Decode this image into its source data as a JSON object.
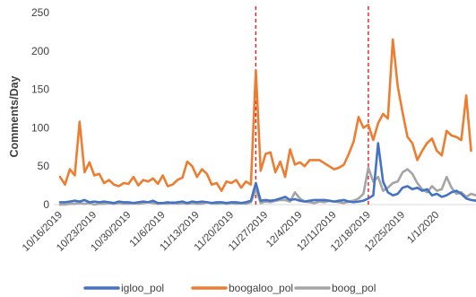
{
  "chart_data": {
    "type": "line",
    "title": "",
    "xlabel": "",
    "ylabel": "Comments/Day",
    "ylim": [
      0,
      250
    ],
    "yticks": [
      "0",
      "50",
      "100",
      "150",
      "200",
      "250"
    ],
    "x_tick_labels": [
      "10/16/2019",
      "10/23/2019",
      "10/30/2019",
      "11/6/2019",
      "11/13/2019",
      "11/20/2019",
      "11/27/2019",
      "12/4/2019",
      "12/11/2019",
      "12/18/2019",
      "12/25/2019",
      "1/1/2020"
    ],
    "x_start": "10/16/2019",
    "grid": false,
    "legend_position": "bottom",
    "reference_lines": [
      {
        "date": "11/25/2019",
        "style": "dashed",
        "color": "#e02020"
      },
      {
        "date": "12/18/2019",
        "style": "dashed",
        "color": "#e02020"
      }
    ],
    "series": [
      {
        "name": "igloo_pol",
        "color": "#4472c4",
        "values": [
          3,
          3,
          4,
          5,
          4,
          6,
          3,
          4,
          3,
          4,
          3,
          2,
          4,
          3,
          3,
          2,
          3,
          4,
          3,
          5,
          2,
          2,
          3,
          2,
          3,
          4,
          2,
          4,
          3,
          4,
          3,
          2,
          3,
          3,
          2,
          3,
          3,
          2,
          3,
          5,
          28,
          5,
          6,
          5,
          6,
          8,
          10,
          6,
          7,
          5,
          4,
          5,
          6,
          6,
          6,
          5,
          4,
          5,
          6,
          4,
          3,
          4,
          5,
          8,
          12,
          80,
          30,
          16,
          12,
          14,
          22,
          24,
          20,
          22,
          18,
          20,
          12,
          14,
          10,
          12,
          16,
          18,
          14,
          8,
          6,
          5,
          4,
          6,
          8,
          5,
          4
        ]
      },
      {
        "name": "boogaloo_pol",
        "color": "#ed7d31",
        "values": [
          36,
          26,
          46,
          38,
          108,
          42,
          55,
          38,
          40,
          28,
          32,
          26,
          24,
          28,
          27,
          36,
          25,
          32,
          30,
          34,
          27,
          38,
          24,
          26,
          32,
          35,
          56,
          50,
          36,
          46,
          40,
          26,
          28,
          18,
          30,
          28,
          32,
          22,
          30,
          26,
          175,
          44,
          66,
          68,
          42,
          56,
          36,
          72,
          52,
          55,
          50,
          58,
          58,
          58,
          54,
          50,
          46,
          48,
          52,
          66,
          82,
          114,
          100,
          104,
          84,
          106,
          118,
          112,
          215,
          154,
          120,
          88,
          80,
          58,
          70,
          80,
          86,
          70,
          64,
          96,
          90,
          88,
          84,
          142,
          70
        ]
      },
      {
        "name": "boog_pol",
        "color": "#a5a5a5",
        "values": [
          0,
          0,
          1,
          1,
          2,
          1,
          2,
          0,
          1,
          1,
          2,
          1,
          2,
          1,
          1,
          2,
          1,
          2,
          3,
          2,
          1,
          2,
          1,
          3,
          1,
          2,
          1,
          2,
          1,
          1,
          3,
          2,
          1,
          2,
          1,
          2,
          1,
          2,
          1,
          3,
          20,
          2,
          4,
          3,
          5,
          6,
          6,
          4,
          16,
          8,
          4,
          3,
          2,
          4,
          3,
          5,
          4,
          3,
          2,
          4,
          5,
          8,
          14,
          48,
          30,
          36,
          18,
          22,
          28,
          30,
          42,
          46,
          40,
          28,
          20,
          16,
          24,
          18,
          20,
          36,
          22,
          14,
          16,
          10,
          14,
          12,
          14,
          16,
          12,
          8,
          10
        ]
      }
    ]
  }
}
